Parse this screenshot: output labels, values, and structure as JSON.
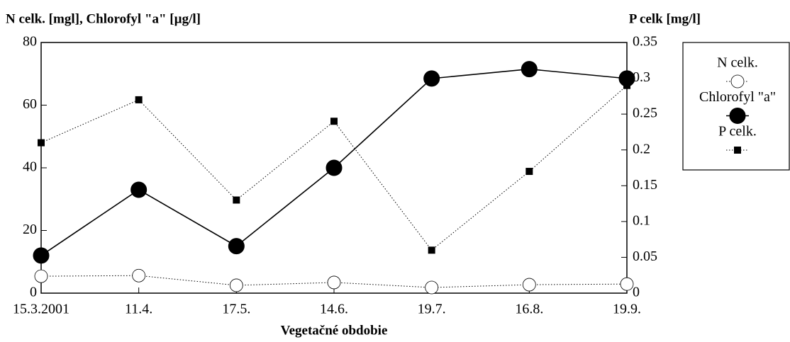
{
  "chart_data": {
    "type": "line",
    "y_label": "N celk. [mgl], Chlorofyl \"a\" [µg/l]",
    "y2_label": "P celk [mg/l]",
    "x_label": "Vegetačné obdobie",
    "categories": [
      "15.3.2001",
      "11.4.",
      "17.5.",
      "14.6.",
      "19.7.",
      "16.8.",
      "19.9."
    ],
    "series": [
      {
        "name": "N celk.",
        "color": "#000000",
        "marker": "open-circle",
        "line_style": "dotted",
        "values": [
          5.4,
          5.6,
          2.5,
          3.4,
          1.8,
          2.7,
          2.9
        ]
      },
      {
        "name": "Chlorofyl \"a\"",
        "color": "#000000",
        "marker": "filled-circle",
        "line_style": "solid",
        "values": [
          12,
          33,
          15,
          40,
          68.5,
          71.5,
          68.5
        ]
      },
      {
        "name": "P celk.",
        "color": "#000000",
        "marker": "square",
        "line_style": "dotted",
        "axis": "y2",
        "values": [
          0.21,
          0.27,
          0.13,
          0.24,
          0.06,
          0.17,
          0.29
        ]
      }
    ],
    "ylim": [
      0,
      80
    ],
    "yticks": [
      0,
      20,
      40,
      60,
      80
    ],
    "y2lim": [
      0,
      0.35
    ],
    "y2ticks": [
      0,
      0.05,
      0.1,
      0.15,
      0.2,
      0.25,
      0.3,
      0.35
    ],
    "legend": "right"
  }
}
